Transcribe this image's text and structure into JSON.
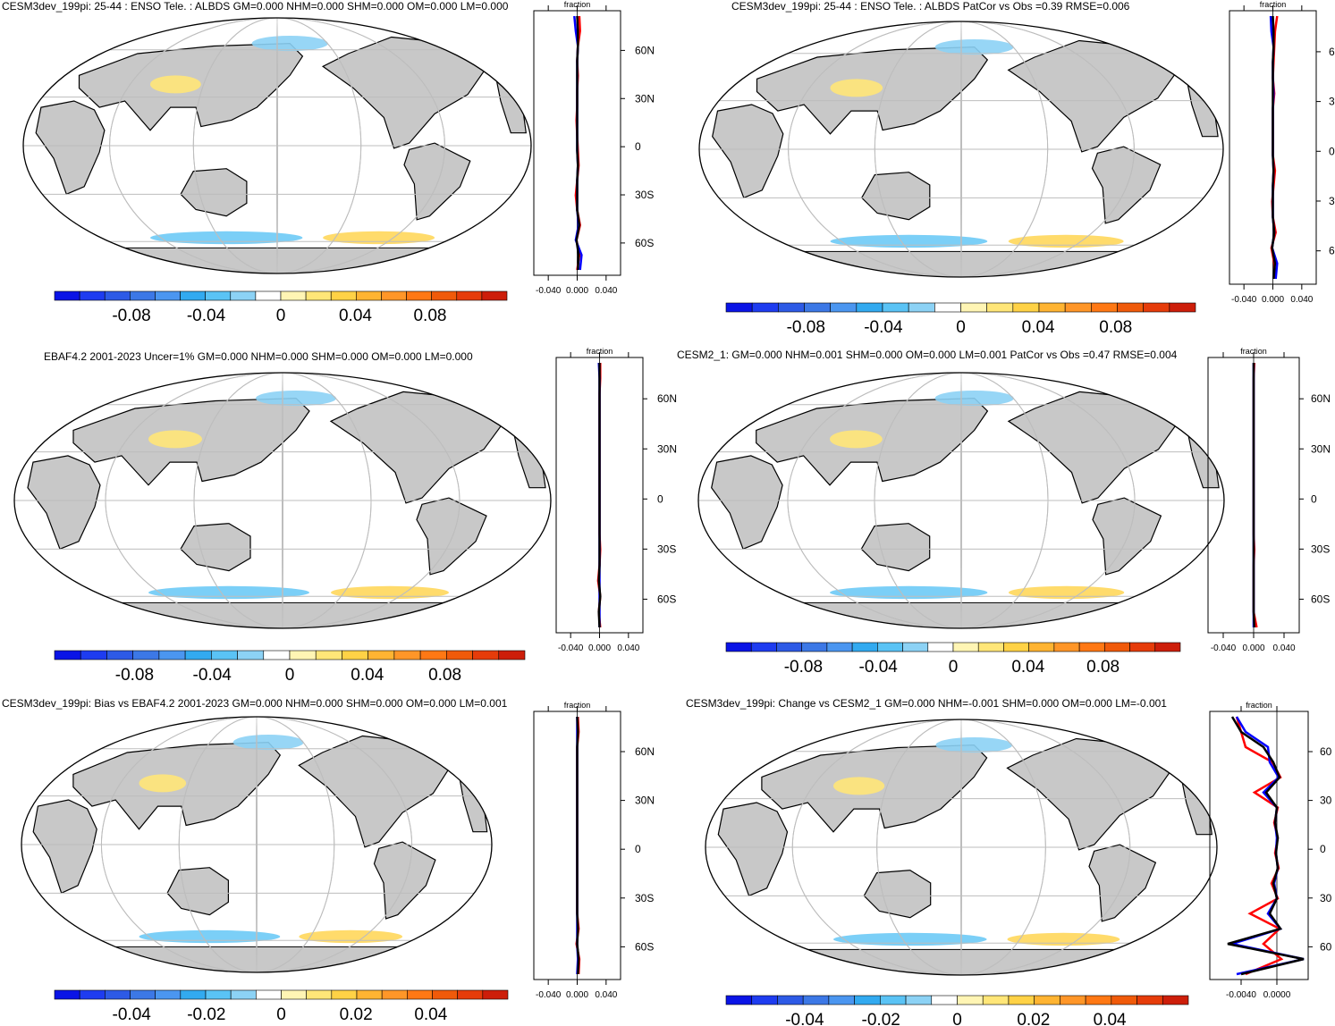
{
  "colors": {
    "land": "#c8c8c8",
    "ocean": "#ffffff",
    "grid": "#bdbdbd",
    "obs_line": "#000000",
    "model_line": "#ff0000",
    "ref_line": "#0000ff",
    "palette": [
      "#0a14e6",
      "#1e3cf0",
      "#2d5ae6",
      "#3c78e6",
      "#4b96f0",
      "#32aaf0",
      "#5ac3f5",
      "#8cd2f5",
      "#ffffff",
      "#fff5b4",
      "#ffe678",
      "#ffd246",
      "#ffb432",
      "#ff9628",
      "#ff7814",
      "#f05a0a",
      "#e63c0a",
      "#cd1e0a"
    ]
  },
  "panels": [
    {
      "title": "CESM3dev_199pi: 25-44 : ENSO Tele. : ALBDS GM=0.000 NHM=0.000 SHM=0.000 OM=0.000 LM=0.000",
      "colorbar_labels": [
        "-0.08",
        "-0.04",
        "0",
        "0.04",
        "0.08"
      ],
      "profile_xlabel": "fraction",
      "profile_ticks": [
        "-0.040",
        "0.000",
        "0.040"
      ],
      "lat_labels": [
        "60N",
        "30N",
        "0",
        "30S",
        "60S"
      ],
      "series": [
        {
          "name": "model",
          "values": [
            0.003,
            0.004,
            0.001,
            0.0,
            0.001,
            0.0,
            0.0,
            -0.001,
            0.0,
            0.001,
            0.002,
            0.0,
            -0.002,
            0.0,
            0.004,
            -0.001,
            0.003,
            0.0
          ]
        },
        {
          "name": "ref",
          "values": [
            -0.004,
            -0.002,
            0.001,
            0.0,
            0.0,
            0.0,
            0.0,
            0.0,
            0.0,
            0.0,
            0.001,
            0.0,
            0.0,
            0.0,
            0.002,
            -0.002,
            0.006,
            0.004
          ]
        },
        {
          "name": "obs",
          "values": [
            0.0,
            0.001,
            0.001,
            0.0,
            0.0,
            0.0,
            0.0,
            0.0,
            0.0,
            0.0,
            0.001,
            0.0,
            0.0,
            0.0,
            0.003,
            -0.001,
            0.002,
            0.001
          ]
        }
      ]
    },
    {
      "title": "CESM3dev_199pi: 25-44 : ENSO Tele. : ALBDS PatCor vs Obs =0.39 RMSE=0.006",
      "colorbar_labels": [
        "-0.08",
        "-0.04",
        "0",
        "0.04",
        "0.08"
      ],
      "profile_xlabel": "fraction",
      "profile_ticks": [
        "-0.040",
        "0.000",
        "0.040"
      ],
      "lat_labels": [
        "6",
        "3",
        "0",
        "3",
        "6"
      ],
      "series": [
        {
          "name": "model",
          "values": [
            0.006,
            0.003,
            0.002,
            0.001,
            0.0,
            0.002,
            0.0,
            0.0,
            0.0,
            0.0,
            0.003,
            0.001,
            -0.001,
            0.0,
            0.004,
            -0.002,
            0.002,
            0.003
          ]
        },
        {
          "name": "ref",
          "values": [
            -0.003,
            -0.002,
            0.001,
            0.0,
            0.0,
            0.001,
            0.0,
            0.0,
            0.0,
            0.0,
            0.001,
            0.0,
            0.0,
            0.0,
            0.002,
            -0.001,
            0.006,
            0.004
          ]
        },
        {
          "name": "obs",
          "values": [
            0.0,
            0.001,
            0.001,
            0.0,
            0.0,
            0.0,
            0.0,
            0.0,
            0.0,
            0.0,
            0.001,
            0.0,
            0.0,
            0.0,
            0.002,
            -0.001,
            0.003,
            0.001
          ]
        }
      ]
    },
    {
      "title": "EBAF4.2 2001-2023 Uncer=1% GM=0.000 NHM=0.000 SHM=0.000 OM=0.000 LM=0.000",
      "colorbar_labels": [
        "-0.08",
        "-0.04",
        "0",
        "0.04",
        "0.08"
      ],
      "profile_xlabel": "fraction",
      "profile_ticks": [
        "-0.040",
        "0.000",
        "0.040"
      ],
      "lat_labels": [
        "60N",
        "30N",
        "0",
        "30S",
        "60S"
      ],
      "series": [
        {
          "name": "model",
          "values": [
            0.001,
            0.001,
            0.0,
            0.0,
            0.0,
            0.0,
            0.0,
            0.0,
            0.0,
            0.0,
            0.0,
            0.0,
            0.001,
            0.0,
            -0.002,
            0.001,
            -0.001,
            0.001
          ]
        },
        {
          "name": "ref",
          "values": [
            -0.001,
            0.0,
            0.0,
            0.0,
            0.0,
            0.0,
            0.0,
            0.0,
            0.0,
            0.0,
            0.0,
            0.0,
            0.0,
            0.0,
            0.0,
            0.0,
            0.0,
            0.0
          ]
        },
        {
          "name": "obs",
          "values": [
            0.0,
            0.0,
            0.0,
            0.0,
            0.0,
            0.0,
            0.0,
            0.0,
            0.0,
            0.0,
            0.0,
            0.0,
            0.0,
            0.0,
            -0.001,
            0.001,
            -0.001,
            0.0
          ]
        }
      ]
    },
    {
      "title": "CESM2_1: GM=0.000 NHM=0.001 SHM=0.000 OM=0.000 LM=0.001 PatCor vs Obs =0.47 RMSE=0.004",
      "colorbar_labels": [
        "-0.08",
        "-0.04",
        "0",
        "0.04",
        "0.08"
      ],
      "profile_xlabel": "fraction",
      "profile_ticks": [
        "-0.040",
        "0.000",
        "0.040"
      ],
      "lat_labels": [
        "60N",
        "30N",
        "0",
        "30S",
        "60S"
      ],
      "series": [
        {
          "name": "model",
          "values": [
            0.001,
            0.0,
            0.0,
            0.0,
            0.0,
            0.0,
            0.0,
            0.0,
            0.0,
            0.0,
            0.0,
            0.0,
            0.001,
            0.0,
            0.0,
            0.0,
            0.0,
            0.004
          ]
        },
        {
          "name": "ref",
          "values": [
            0.0,
            0.0,
            0.0,
            0.0,
            0.0,
            0.0,
            0.0,
            0.0,
            0.0,
            0.0,
            0.0,
            0.0,
            0.0,
            0.0,
            0.0,
            0.0,
            0.0,
            0.0
          ]
        },
        {
          "name": "obs",
          "values": [
            0.0,
            0.0,
            0.0,
            0.0,
            0.0,
            0.0,
            0.0,
            0.0,
            0.0,
            0.0,
            0.0,
            0.0,
            0.0,
            0.0,
            0.0,
            0.0,
            0.0,
            0.001
          ]
        }
      ]
    },
    {
      "title": "CESM3dev_199pi: Bias vs EBAF4.2 2001-2023 GM=0.000 NHM=0.000 SHM=0.000 OM=0.000 LM=0.001",
      "colorbar_labels": [
        "-0.04",
        "-0.02",
        "0",
        "0.02",
        "0.04"
      ],
      "profile_xlabel": "fraction",
      "profile_ticks": [
        "-0.040",
        "0.000",
        "0.040"
      ],
      "lat_labels": [
        "60N",
        "30N",
        "0",
        "30S",
        "60S"
      ],
      "series": [
        {
          "name": "model",
          "values": [
            0.001,
            0.002,
            0.0,
            0.0,
            0.0,
            0.0,
            0.0,
            0.0,
            0.0,
            0.0,
            0.0,
            0.0,
            0.0,
            0.0,
            0.002,
            -0.001,
            0.003,
            0.002
          ]
        },
        {
          "name": "ref",
          "values": [
            0.0,
            0.0,
            0.0,
            0.0,
            0.0,
            0.0,
            0.0,
            0.0,
            0.0,
            0.0,
            0.0,
            0.0,
            0.0,
            0.0,
            0.0,
            0.0,
            0.001,
            0.0
          ]
        },
        {
          "name": "obs",
          "values": [
            0.0,
            0.001,
            0.0,
            0.0,
            0.0,
            0.0,
            0.0,
            0.0,
            0.0,
            0.0,
            0.0,
            0.0,
            0.0,
            0.0,
            0.001,
            0.0,
            0.002,
            0.001
          ]
        }
      ]
    },
    {
      "title": "CESM3dev_199pi: Change vs CESM2_1 GM=0.000 NHM=-0.001 SHM=0.000 OM=0.000 LM=-0.001",
      "colorbar_labels": [
        "-0.04",
        "-0.02",
        "0",
        "0.02",
        "0.04"
      ],
      "profile_xlabel": "fraction",
      "profile_ticks": [
        "-0.0040",
        "0.0000"
      ],
      "lat_labels": [
        "60",
        "30",
        "0",
        "30",
        "60"
      ],
      "series": [
        {
          "name": "model",
          "values": [
            -0.0045,
            -0.004,
            -0.0035,
            -0.0005,
            0.0004,
            -0.0025,
            0.0001,
            -0.0003,
            0.0001,
            -0.0002,
            0.0002,
            -0.0006,
            0.0001,
            -0.003,
            0.0003,
            -0.0015,
            0.0005,
            -0.0035
          ]
        },
        {
          "name": "ref",
          "values": [
            -0.0045,
            -0.0035,
            -0.001,
            -0.0008,
            0.0002,
            -0.0015,
            0.0,
            -0.0002,
            0.0,
            -0.0001,
            0.0001,
            -0.0003,
            0.0,
            -0.001,
            0.0004,
            -0.005,
            0.003,
            -0.0045
          ]
        },
        {
          "name": "obs",
          "values": [
            -0.005,
            -0.004,
            -0.0015,
            -0.0004,
            0.0003,
            -0.0012,
            0.0,
            -0.0002,
            0.0001,
            -0.0001,
            0.0001,
            -0.0004,
            0.0,
            -0.0008,
            0.0004,
            -0.0055,
            0.003,
            -0.004
          ]
        }
      ]
    }
  ]
}
